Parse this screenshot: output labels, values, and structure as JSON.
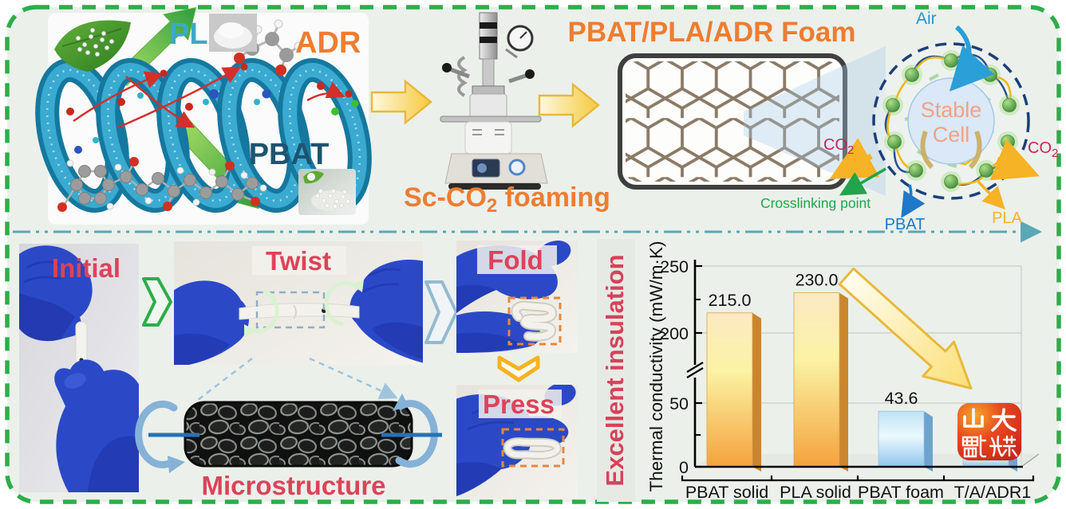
{
  "palette": {
    "accent_orange": "#ED7D31",
    "label_crimson": "#DC4358",
    "border_green": "#2BAE4A",
    "divider_teal": "#58A8B6",
    "pla_teal": "#3FA8C8",
    "pbat_dark": "#1D5470",
    "cell_salmon": "#F2A285",
    "air_blue": "#2196D3",
    "co2_crimson": "#C9235A",
    "crosslink_green": "#21A44B",
    "cell_pbat_blue": "#1F78C8",
    "cell_pla_gold": "#F5B325",
    "glove_blue": "#2B49C7"
  },
  "top": {
    "pla": "PLA",
    "adr": "ADR",
    "pbat": "PBAT",
    "process": {
      "prefix": "Sc-CO",
      "sub": "2",
      "suffix": " foaming"
    },
    "foam_title": "PBAT/PLA/ADR Foam",
    "cell": {
      "line1": "Stable",
      "line2": "Cell",
      "air": "Air",
      "co2_base": "CO",
      "co2_sub": "2",
      "crosslinking": "Crosslinking point",
      "pbat": "PBAT",
      "pla": "PLA"
    }
  },
  "bottom": {
    "steps": [
      {
        "label": "Initial"
      },
      {
        "label": "Twist"
      },
      {
        "label": "Fold"
      },
      {
        "label": "Press"
      }
    ],
    "microstructure": "Microstructure",
    "insulation": "Excellent insulation"
  },
  "chart_data": {
    "type": "bar",
    "title": "",
    "ylabel": "Thermal conductivity (mW/m·K)",
    "xlabel": "",
    "categories": [
      "PBAT solid",
      "PLA solid",
      "PBAT foam",
      "T/A/ADR1"
    ],
    "values": [
      215.0,
      230.0,
      43.6,
      15
    ],
    "value_labels": [
      "215.0",
      "230.0",
      "43.6",
      ""
    ],
    "last_value_note": "bar drawn short (~15, estimated); numeric label hidden behind red logo badge",
    "ylim": [
      0,
      250
    ],
    "yticks_major": [
      0,
      50,
      200,
      250
    ],
    "yticks_minor": [
      25,
      225
    ],
    "axis_break_between": [
      50,
      200
    ],
    "grid_values": [
      50,
      200,
      250
    ],
    "grid": true,
    "legend": "none",
    "bar_palette": [
      "orange",
      "orange",
      "blue",
      "blue"
    ],
    "colors": {
      "bar_orange_side": "#C9862E",
      "bar_blue_side": "#6FA3CF",
      "highlight_arrow": "#F5B31E"
    },
    "badge": {
      "line1": "山大",
      "line2": "融媒",
      "bg": "#D6301E"
    }
  }
}
